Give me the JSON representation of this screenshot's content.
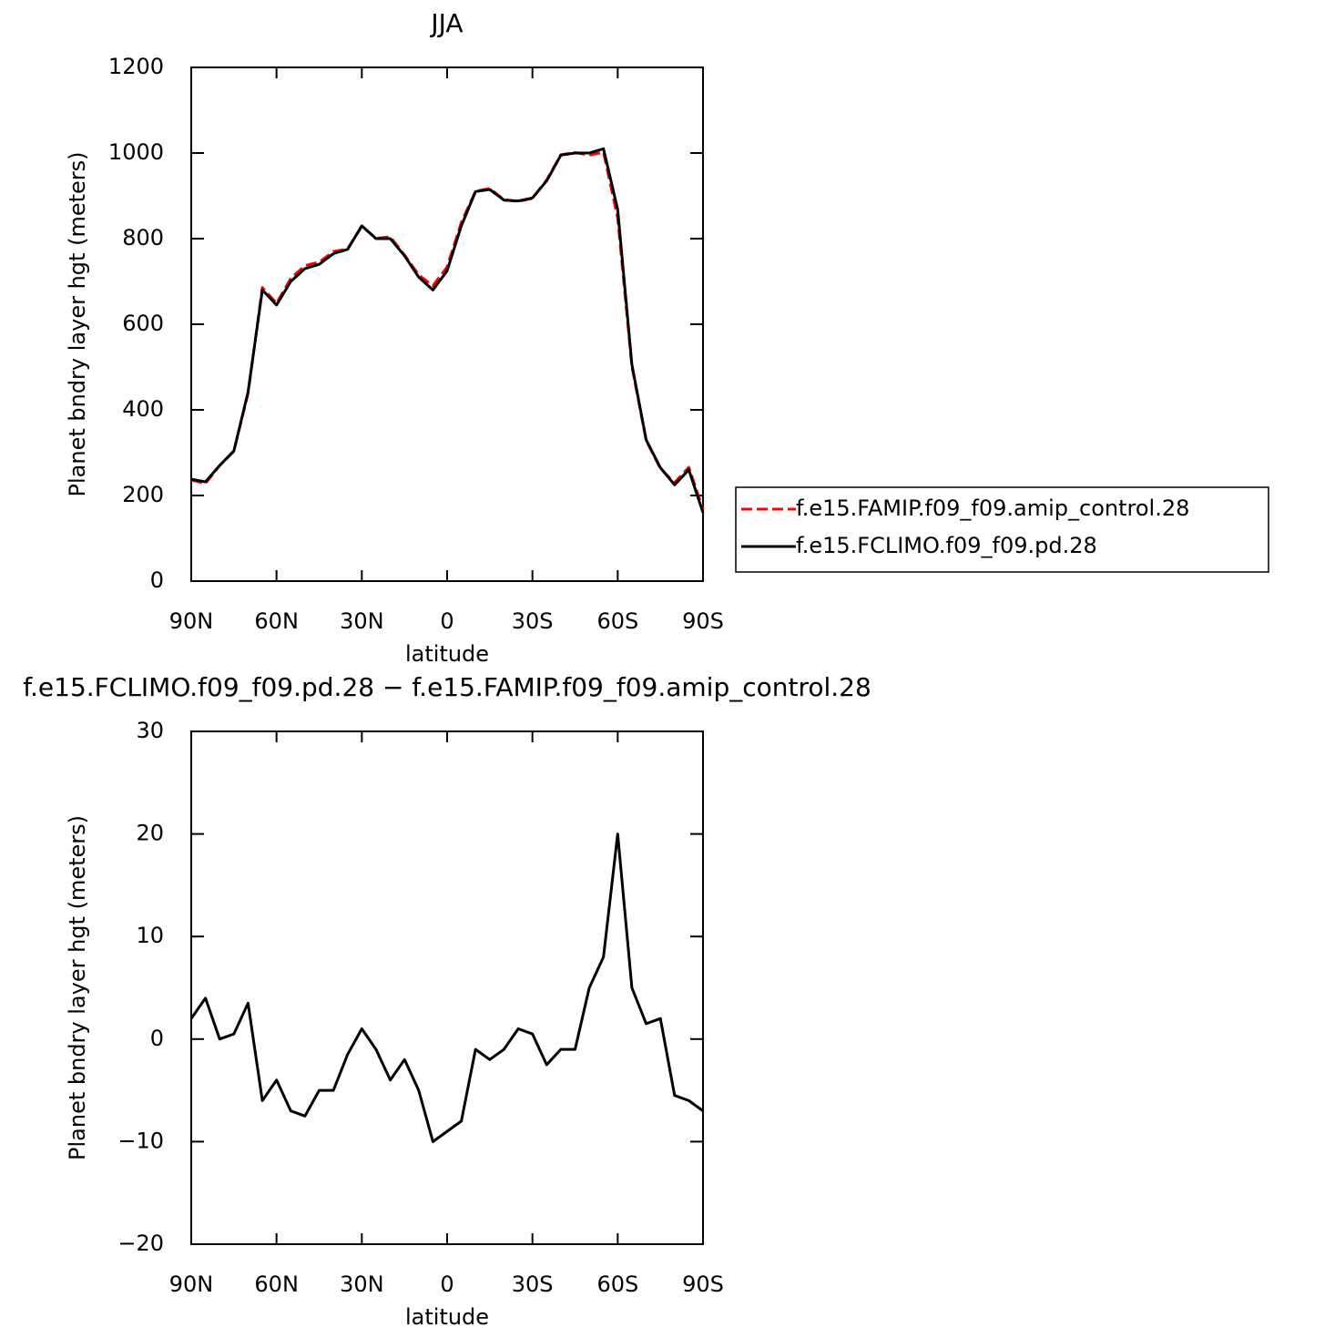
{
  "chart_data": [
    {
      "type": "line",
      "title": "JJA",
      "x_label": "latitude",
      "y_label": "Planet bndry layer hgt (meters)",
      "x": [
        90,
        85,
        80,
        75,
        70,
        65,
        60,
        55,
        50,
        45,
        40,
        35,
        30,
        25,
        20,
        15,
        10,
        5,
        0,
        -5,
        -10,
        -15,
        -20,
        -25,
        -30,
        -35,
        -40,
        -45,
        -50,
        -55,
        -60,
        -65,
        -70,
        -75,
        -80,
        -85,
        -90
      ],
      "series": [
        {
          "name": "f.e15.FAMIP.f09_f09.amip_control.28",
          "color": "#ff0000",
          "dash": "dashed",
          "values": [
            236,
            228,
            270,
            303,
            438,
            686,
            649,
            707,
            737,
            745,
            770,
            776,
            829,
            801,
            804,
            762,
            715,
            690,
            734,
            838,
            911,
            917,
            891,
            887,
            894,
            937,
            996,
            1001,
            995,
            1002,
            848,
            501,
            328,
            263,
            230,
            266,
            167
          ]
        },
        {
          "name": "f.e15.FCLIMO.f09_f09.pd.28",
          "color": "#000000",
          "dash": "solid",
          "values": [
            238,
            232,
            270,
            304,
            442,
            680,
            645,
            700,
            730,
            740,
            765,
            775,
            830,
            800,
            800,
            760,
            710,
            680,
            725,
            830,
            910,
            915,
            890,
            888,
            895,
            935,
            995,
            1000,
            1000,
            1010,
            868,
            506,
            330,
            265,
            225,
            260,
            160
          ]
        }
      ],
      "xlim": [
        90,
        -90
      ],
      "xticks": [
        {
          "value": 90,
          "label": "90N"
        },
        {
          "value": 60,
          "label": "60N"
        },
        {
          "value": 30,
          "label": "30N"
        },
        0,
        {
          "value": -30,
          "label": "30S"
        },
        {
          "value": -60,
          "label": "60S"
        },
        {
          "value": -90,
          "label": "90S"
        }
      ],
      "ylim": [
        0,
        1200
      ],
      "yticks": [
        0,
        200,
        400,
        600,
        800,
        1000,
        1200
      ],
      "legend": "right"
    },
    {
      "type": "line",
      "title": "f.e15.FCLIMO.f09_f09.pd.28 − f.e15.FAMIP.f09_f09.amip_control.28",
      "x_label": "latitude",
      "y_label": "Planet bndry layer hgt (meters)",
      "x": [
        90,
        85,
        80,
        75,
        70,
        65,
        60,
        55,
        50,
        45,
        40,
        35,
        30,
        25,
        20,
        15,
        10,
        5,
        0,
        -5,
        -10,
        -15,
        -20,
        -25,
        -30,
        -35,
        -40,
        -45,
        -50,
        -55,
        -60,
        -65,
        -70,
        -75,
        -80,
        -85,
        -90
      ],
      "values": [
        2,
        4,
        0,
        0.5,
        3.5,
        -6,
        -4,
        -7,
        -7.5,
        -5,
        -5,
        -1.5,
        1,
        -1,
        -4,
        -2,
        -5,
        -10,
        -9,
        -8,
        -1,
        -2,
        -1,
        1,
        0.5,
        -2.5,
        -1,
        -1,
        5,
        8,
        20,
        5,
        1.5,
        2,
        -5.5,
        -6,
        -7
      ],
      "color": "#000000",
      "xlim": [
        90,
        -90
      ],
      "xticks": [
        {
          "value": 90,
          "label": "90N"
        },
        {
          "value": 60,
          "label": "60N"
        },
        {
          "value": 30,
          "label": "30N"
        },
        0,
        {
          "value": -30,
          "label": "30S"
        },
        {
          "value": -60,
          "label": "60S"
        },
        {
          "value": -90,
          "label": "90S"
        }
      ],
      "ylim": [
        -20,
        30
      ],
      "yticks": [
        {
          "value": -20,
          "label": "−20"
        },
        {
          "value": -10,
          "label": "−10"
        },
        0,
        10,
        20,
        30
      ]
    }
  ]
}
